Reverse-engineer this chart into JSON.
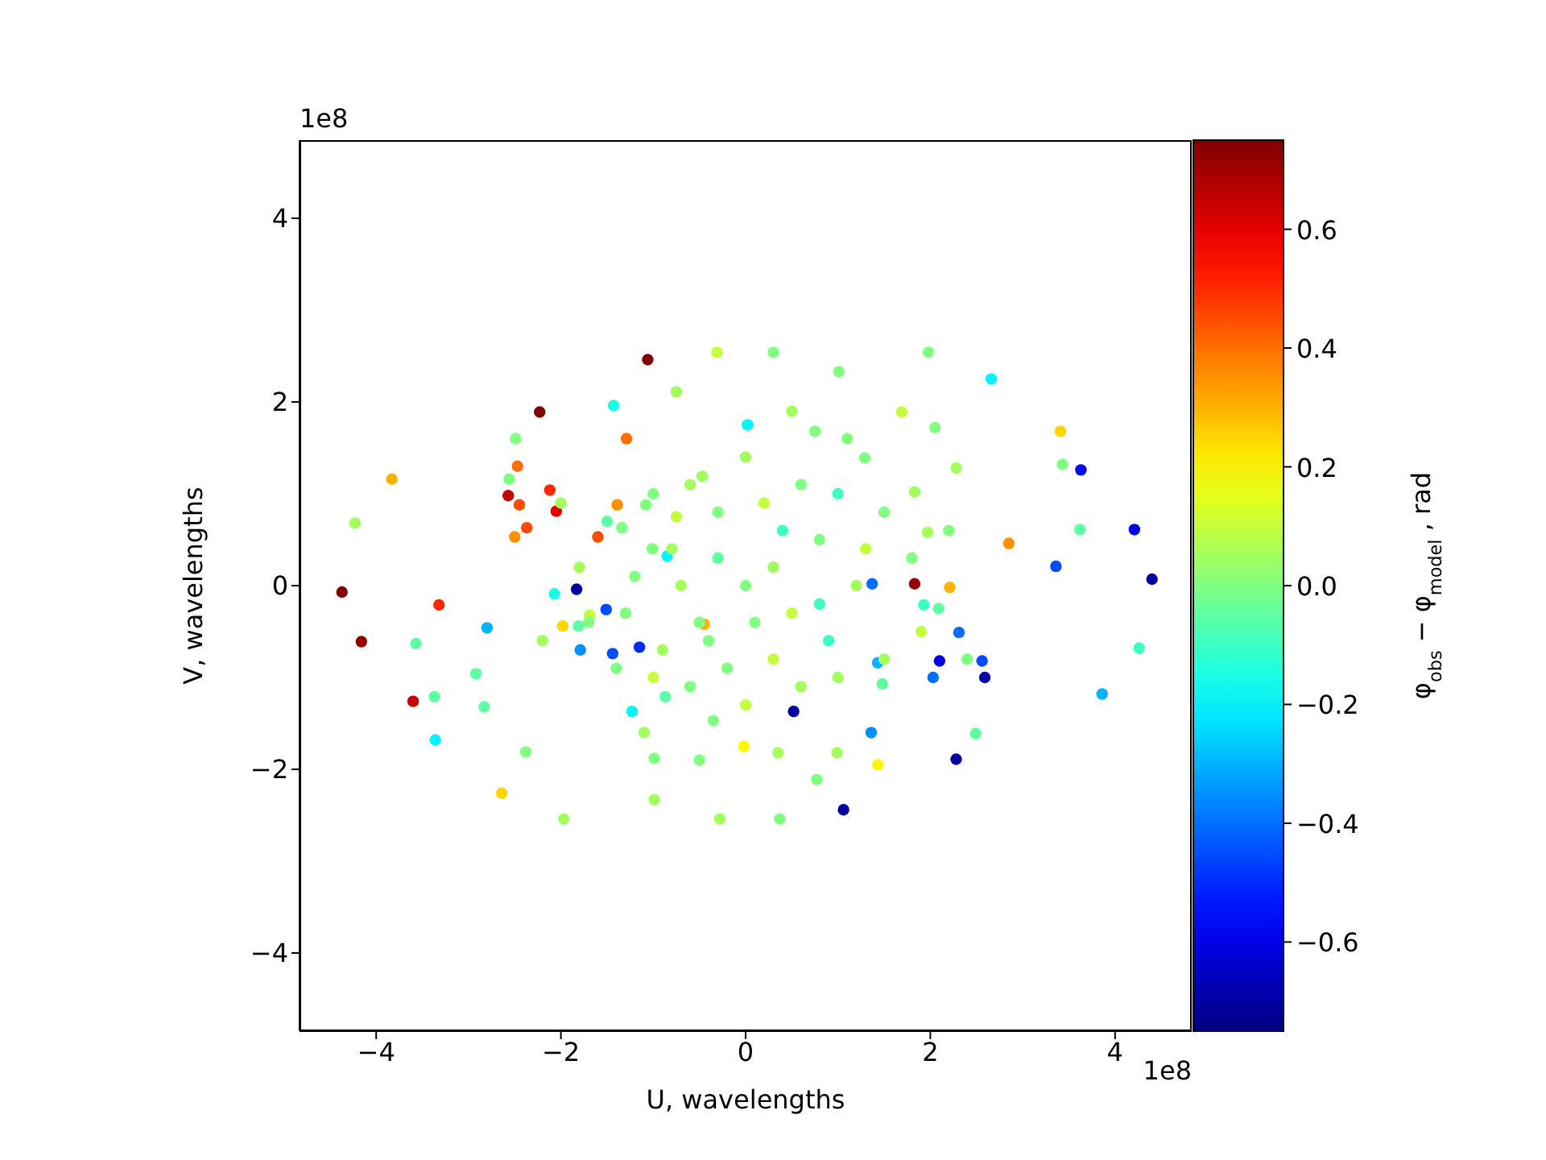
{
  "chart_data": {
    "type": "scatter",
    "xlabel": "U, wavelengths",
    "ylabel": "V, wavelengths",
    "clabel": "φ$_{obs}$ − φ$_{model}$, rad",
    "annotations": [
      "1e8",
      "1e8"
    ],
    "xlim": [
      -4.83,
      4.83
    ],
    "ylim": [
      -4.85,
      4.85
    ],
    "xticks": [
      -4,
      -2,
      0,
      2,
      4
    ],
    "yticks": [
      -4,
      -2,
      0,
      2,
      4
    ],
    "clim": [
      -0.75,
      0.75
    ],
    "cticks": [
      -0.6,
      -0.4,
      -0.2,
      {
        "value": 0,
        "label": "0.0"
      },
      0.2,
      0.4,
      0.6
    ],
    "grid": false,
    "legend": false,
    "marker": "circle",
    "x": [
      -4.37,
      -4.16,
      -4.23,
      -3.83,
      -3.32,
      -3.57,
      -3.6,
      -3.37,
      -3.36,
      -2.92,
      -2.8,
      -2.83,
      -2.64,
      -2.49,
      -2.47,
      -2.56,
      -2.57,
      -2.45,
      -2.37,
      -2.23,
      -2.12,
      -2.05,
      -2.5,
      -2.38,
      -1.97,
      -1.98,
      -1.43,
      -1.29,
      -1.06,
      -0.75,
      -0.99,
      -0.99,
      -0.28,
      -0.31,
      0.3,
      1.01,
      0.37,
      -0.02,
      0.35,
      0.99,
      0.77,
      1.06,
      0.52,
      1.98,
      2.66,
      3.41,
      3.43,
      3.63,
      4.21,
      4.4,
      3.62,
      3.36,
      2.85,
      2.28,
      1.83,
      4.26,
      3.86,
      2.59,
      2.56,
      2.49,
      2.28,
      2.03,
      2.31,
      2.1,
      1.43,
      1.36,
      1.48,
      1.43,
      2.21,
      1.93,
      2.09,
      1.97,
      1.83,
      2.05,
      1.69,
      1.29,
      0.75,
      0.02,
      -0.75,
      -0.47,
      -1.34,
      -1.39,
      -1.08,
      -1.6,
      -2.07,
      -1.81,
      -1.51,
      -1.69,
      -1.79,
      -1.44,
      -1.15,
      -1.83,
      -0.45,
      -1.23,
      -0.87,
      -0.35,
      1.37,
      -0.85,
      -1.01,
      0,
      0.3,
      -0.3,
      0.5,
      -0.5,
      0.8,
      -0.8,
      0.9,
      -0.9,
      0.2,
      -0.2,
      0.1,
      1.2,
      -1.2,
      0.6,
      -0.6,
      0.6,
      -0.6,
      1.5,
      -1.5,
      1.5,
      -1.4,
      0,
      0,
      1.0,
      -1.0,
      1.0,
      -1.0,
      0.4,
      -0.4,
      1.8,
      -1.8,
      1.9,
      -1.7,
      0.3,
      -0.3,
      1.3,
      -1.3,
      0.8,
      -0.7,
      2.2,
      -2.2,
      0.5,
      -0.5,
      1.1,
      -1.1,
      2.4,
      -2.0
    ],
    "values": [
      -0.07,
      -0.61,
      0.68,
      1.16,
      -0.21,
      -0.63,
      -1.26,
      -1.21,
      -1.68,
      -0.96,
      -0.46,
      -1.32,
      -2.26,
      1.6,
      1.3,
      1.16,
      0.98,
      0.88,
      0.63,
      1.89,
      1.04,
      0.81,
      0.53,
      -1.81,
      -2.54,
      -0.44,
      1.96,
      1.6,
      2.46,
      2.11,
      -1.88,
      -2.33,
      -2.54,
      2.54,
      2.54,
      2.33,
      -2.54,
      -1.75,
      -1.82,
      -1.82,
      -2.11,
      -2.44,
      -1.37,
      2.54,
      2.25,
      1.68,
      1.32,
      1.26,
      0.61,
      0.07,
      0.61,
      0.21,
      0.46,
      1.28,
      0.02,
      -0.68,
      -1.18,
      -1.0,
      -0.82,
      -1.61,
      -1.89,
      -1.0,
      -0.51,
      -0.82,
      -1.95,
      -1.6,
      -1.07,
      -0.84,
      -0.02,
      -0.21,
      -0.25,
      0.58,
      1.02,
      1.72,
      1.89,
      1.39,
      1.68,
      1.75,
      0.75,
      1.19,
      0.63,
      0.88,
      0.88,
      0.53,
      -0.09,
      -0.44,
      -0.26,
      -0.32,
      -0.7,
      -0.74,
      -0.67,
      -0.04,
      -0.42,
      -1.37,
      -1.21,
      -1.47,
      0.02,
      0.32,
      0.4,
      0,
      0.2,
      0.3,
      -0.3,
      -0.4,
      0.5,
      0.4,
      -0.6,
      -0.7,
      0.9,
      -0.9,
      -0.4,
      0,
      0.1,
      1.1,
      1.1,
      -1.1,
      -1.1,
      0.8,
      0.7,
      -0.8,
      -0.9,
      1.4,
      -1.3,
      1.0,
      1.0,
      -1.0,
      -1.0,
      0.6,
      -0.6,
      0.3,
      0.2,
      -0.5,
      -0.4,
      -0.8,
      0.8,
      0.4,
      -0.3,
      -0.2,
      0.0,
      0.6,
      -0.6,
      1.9,
      -1.9,
      1.6,
      -1.6,
      -0.8,
      0.9
    ],
    "cvalues": [
      0.75,
      0.72,
      0.05,
      0.3,
      0.5,
      -0.05,
      0.65,
      -0.05,
      -0.2,
      -0.05,
      -0.3,
      -0.05,
      0.25,
      0.0,
      0.4,
      0.0,
      0.65,
      0.45,
      0.45,
      0.75,
      0.5,
      0.6,
      0.35,
      0.0,
      0.05,
      0.25,
      -0.15,
      0.4,
      0.75,
      0.05,
      0.0,
      0.05,
      0.05,
      0.1,
      0.0,
      0.0,
      0.0,
      0.2,
      0.05,
      0.05,
      0.0,
      -0.7,
      -0.7,
      0.0,
      -0.2,
      0.25,
      0.0,
      -0.55,
      -0.6,
      -0.7,
      -0.05,
      -0.45,
      0.35,
      0.05,
      0.72,
      -0.1,
      -0.3,
      -0.7,
      -0.45,
      -0.05,
      -0.7,
      -0.4,
      -0.4,
      -0.6,
      0.2,
      -0.35,
      -0.05,
      -0.3,
      0.3,
      -0.1,
      -0.05,
      0.05,
      0.05,
      0.0,
      0.1,
      0.0,
      0.0,
      -0.2,
      0.1,
      0.05,
      0.0,
      0.35,
      0.0,
      0.45,
      -0.15,
      -0.05,
      -0.45,
      0.1,
      -0.35,
      -0.45,
      -0.5,
      -0.7,
      0.3,
      -0.2,
      -0.05,
      0.0,
      -0.4,
      -0.2,
      0.0,
      0.0,
      0.05,
      -0.05,
      0.1,
      0.0,
      0.0,
      0.05,
      -0.1,
      0.05,
      0.1,
      0.0,
      0.0,
      0.05,
      0.0,
      0.0,
      0.05,
      0.05,
      0.0,
      0.0,
      -0.05,
      0.05,
      0.0,
      0.05,
      0.1,
      -0.1,
      0.0,
      0.05,
      0.1,
      -0.1,
      0.0,
      0.0,
      0.05,
      0.1,
      0.0,
      0.1,
      0.0,
      0.1,
      0.0,
      -0.1,
      0.05,
      0.0,
      0.05,
      0.05,
      0.0,
      0.0,
      0.05,
      0.0,
      0.05
    ]
  }
}
